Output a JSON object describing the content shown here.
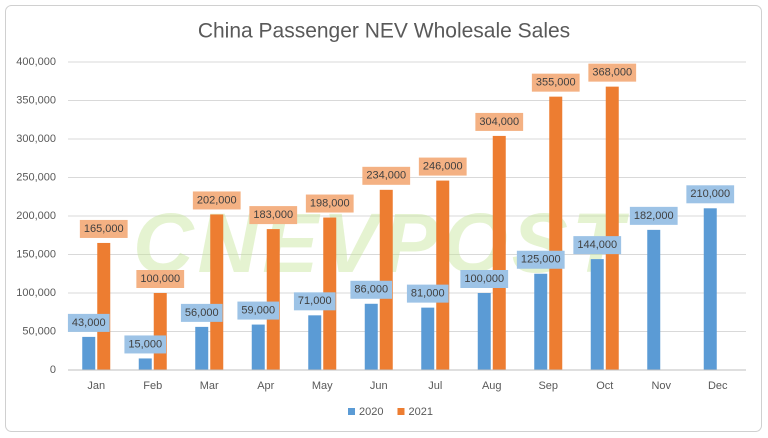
{
  "chart_data": {
    "type": "bar",
    "title": "China Passenger NEV Wholesale Sales",
    "watermark": "CNEVPOST",
    "categories": [
      "Jan",
      "Feb",
      "Mar",
      "Apr",
      "May",
      "Jun",
      "Jul",
      "Aug",
      "Sep",
      "Oct",
      "Nov",
      "Dec"
    ],
    "series": [
      {
        "name": "2020",
        "color": "#5b9bd5",
        "label_color": "#9dc3e6",
        "values": [
          43000,
          15000,
          56000,
          59000,
          71000,
          86000,
          81000,
          100000,
          125000,
          144000,
          182000,
          210000
        ],
        "value_labels": [
          "43,000",
          "15,000",
          "56,000",
          "59,000",
          "71,000",
          "86,000",
          "81,000",
          "100,000",
          "125,000",
          "144,000",
          "182,000",
          "210,000"
        ]
      },
      {
        "name": "2021",
        "color": "#ed7d31",
        "label_color": "#f4b183",
        "values": [
          165000,
          100000,
          202000,
          183000,
          198000,
          234000,
          246000,
          304000,
          355000,
          368000,
          null,
          null
        ],
        "value_labels": [
          "165,000",
          "100,000",
          "202,000",
          "183,000",
          "198,000",
          "234,000",
          "246,000",
          "304,000",
          "355,000",
          "368,000",
          null,
          null
        ]
      }
    ],
    "ylim": [
      0,
      400000
    ],
    "yticks": [
      0,
      {
        "value": 50000,
        "label": "50,000"
      },
      {
        "value": 100000,
        "label": "100,000"
      },
      {
        "value": 150000,
        "label": "150,000"
      },
      {
        "value": 200000,
        "label": "200,000"
      },
      {
        "value": 250000,
        "label": "250,000"
      },
      {
        "value": 300000,
        "label": "300,000"
      },
      {
        "value": 350000,
        "label": "350,000"
      },
      {
        "value": 400000,
        "label": "400,000"
      }
    ],
    "grid": true,
    "legend": "bottom"
  }
}
